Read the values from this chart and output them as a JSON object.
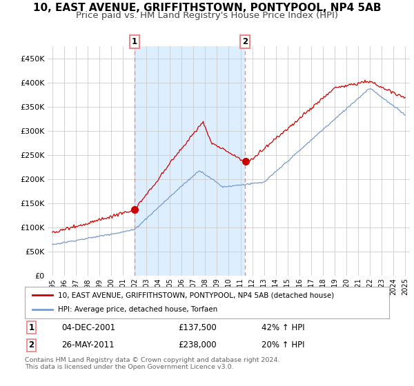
{
  "title": "10, EAST AVENUE, GRIFFITHSTOWN, PONTYPOOL, NP4 5AB",
  "subtitle": "Price paid vs. HM Land Registry's House Price Index (HPI)",
  "ylim": [
    0,
    475000
  ],
  "yticks": [
    0,
    50000,
    100000,
    150000,
    200000,
    250000,
    300000,
    350000,
    400000,
    450000
  ],
  "ytick_labels": [
    "£0",
    "£50K",
    "£100K",
    "£150K",
    "£200K",
    "£250K",
    "£300K",
    "£350K",
    "£400K",
    "£450K"
  ],
  "bg_color": "#ffffff",
  "plot_bg_color": "#ffffff",
  "shade_color": "#ddeeff",
  "grid_color": "#cccccc",
  "marker1_year": 2002.0,
  "marker1_value": 137500,
  "marker2_year": 2011.4,
  "marker2_value": 238000,
  "legend_line1": "10, EAST AVENUE, GRIFFITHSTOWN, PONTYPOOL, NP4 5AB (detached house)",
  "legend_line2": "HPI: Average price, detached house, Torfaen",
  "annotation1_date": "04-DEC-2001",
  "annotation1_price": "£137,500",
  "annotation1_hpi": "42% ↑ HPI",
  "annotation2_date": "26-MAY-2011",
  "annotation2_price": "£238,000",
  "annotation2_hpi": "20% ↑ HPI",
  "footer": "Contains HM Land Registry data © Crown copyright and database right 2024.\nThis data is licensed under the Open Government Licence v3.0.",
  "red_color": "#cc0000",
  "blue_color": "#7799cc",
  "vline_color": "#ee8888",
  "dot_color": "#cc0000",
  "title_fontsize": 11,
  "subtitle_fontsize": 9.5
}
